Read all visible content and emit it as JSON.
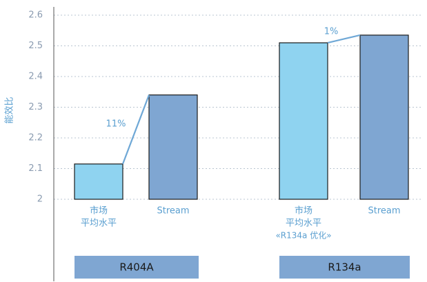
{
  "chart_data": {
    "type": "bar",
    "y_label": "能效比",
    "categories": [
      [
        "市场",
        "平均水平"
      ],
      [
        "Stream"
      ],
      [
        "市场",
        "平均水平",
        "«R134a 优化»"
      ],
      [
        "Stream"
      ]
    ],
    "values": [
      2.115,
      2.34,
      2.51,
      2.535
    ],
    "colors": [
      "#8fd3f0",
      "#7fa6d2",
      "#8fd3f0",
      "#7fa6d2"
    ],
    "groups": [
      "R404A",
      "R134a"
    ],
    "annotations": [
      "11%",
      "1%"
    ],
    "ylim": [
      2,
      2.6
    ],
    "yticks": [
      2,
      2.1,
      2.2,
      2.3,
      2.4,
      2.5,
      2.6
    ],
    "grid": true
  }
}
